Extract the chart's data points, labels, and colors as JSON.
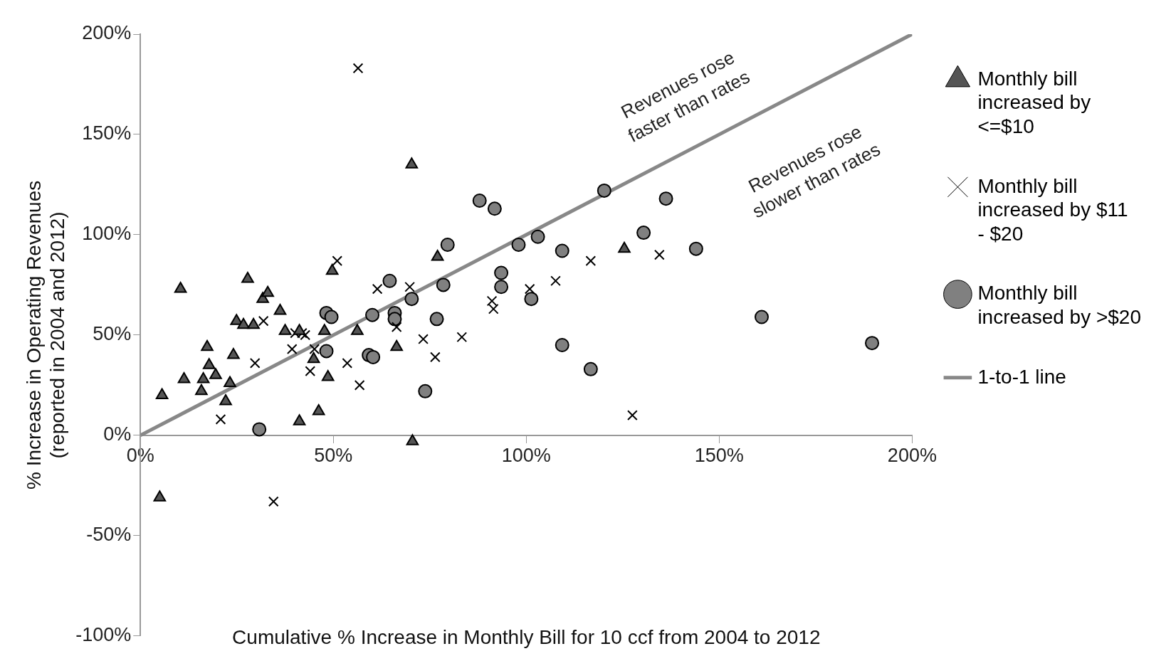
{
  "chart_data": {
    "type": "scatter",
    "xlabel": "Cumulative % Increase in Monthly Bill for 10 ccf from 2004 to 2012",
    "ylabel": "% Increase in Operating Revenues\n(reported in 2004 and 2012)",
    "xlim": [
      0,
      200
    ],
    "xticks": [
      {
        "value": 0,
        "label": "0%"
      },
      {
        "value": 50,
        "label": "50%"
      },
      {
        "value": 100,
        "label": "100%"
      },
      {
        "value": 150,
        "label": "150%"
      },
      {
        "value": 200,
        "label": "200%"
      }
    ],
    "ylim": [
      -100,
      200
    ],
    "yticks": [
      {
        "value": -100,
        "label": "-100%"
      },
      {
        "value": -50,
        "label": "-50%"
      },
      {
        "value": 0,
        "label": "0%"
      },
      {
        "value": 50,
        "label": "50%"
      },
      {
        "value": 100,
        "label": "100%"
      },
      {
        "value": 150,
        "label": "150%"
      },
      {
        "value": 200,
        "label": "200%"
      }
    ],
    "grid": false,
    "legend": "right",
    "annotations": [
      "Revenues rose\nfaster than rates",
      "Revenues rose\nslower than rates"
    ],
    "series": [
      {
        "name": "Monthly bill increased by <=$10",
        "color": "#555555",
        "marker": "triangle",
        "x": [
          5.6,
          10.4,
          11.3,
          17.3,
          17.8,
          15.8,
          16.3,
          19.5,
          22.1,
          23.2,
          24.1,
          24.9,
          27.8,
          26.7,
          29.3,
          31.7,
          33,
          36.2,
          37.5,
          41.2,
          41.2,
          44.9,
          46.2,
          47.7,
          48.6,
          49.7,
          56.2,
          66.4,
          70.3,
          70.5,
          77,
          125.4,
          5
        ],
        "values": [
          20,
          73,
          28,
          44,
          35,
          22,
          28,
          30,
          17,
          26,
          40,
          57,
          78,
          55,
          55,
          68,
          71,
          62,
          52,
          52,
          7,
          38,
          12,
          52,
          29,
          82,
          52,
          44,
          135,
          -3,
          89,
          93,
          -31
        ]
      },
      {
        "name": "Monthly bill increased by $11 - $20",
        "color": "#000000",
        "marker": "cross",
        "x": [
          56.4,
          29.7,
          20.8,
          31.9,
          39.3,
          40.1,
          41.9,
          42.7,
          44,
          45.1,
          51,
          53.6,
          56.8,
          61.4,
          66.4,
          69.8,
          73.3,
          76.4,
          83.3,
          91.1,
          91.5,
          100.9,
          107.6,
          116.7,
          127.5,
          134.5,
          34.5
        ],
        "values": [
          183,
          36,
          8,
          57,
          43,
          51,
          51,
          50,
          32,
          43,
          87,
          36,
          25,
          73,
          54,
          74,
          48,
          39,
          49,
          67,
          63,
          73,
          77,
          87,
          10,
          90,
          -33
        ]
      },
      {
        "name": "Monthly bill increased by >$20",
        "color": "#808080",
        "marker": "circle",
        "x": [
          30.8,
          48.2,
          49.5,
          48.2,
          59.2,
          60.3,
          60.1,
          64.6,
          65.9,
          65.9,
          70.3,
          73.8,
          76.8,
          78.5,
          79.6,
          87.9,
          91.8,
          93.5,
          93.5,
          98,
          101.3,
          103,
          109.3,
          109.3,
          116.7,
          120.2,
          130.4,
          136.2,
          144,
          161,
          189.6
        ],
        "values": [
          3,
          61,
          59,
          42,
          40,
          39,
          60,
          77,
          61,
          58,
          68,
          22,
          58,
          75,
          95,
          117,
          113,
          81,
          74,
          95,
          68,
          99,
          92,
          45,
          33,
          122,
          101,
          118,
          93,
          59,
          46
        ]
      },
      {
        "name": "1-to-1 line",
        "type": "line",
        "color": "#888888",
        "marker": "none",
        "x": [
          0,
          200
        ],
        "values": [
          0,
          200
        ]
      }
    ]
  }
}
